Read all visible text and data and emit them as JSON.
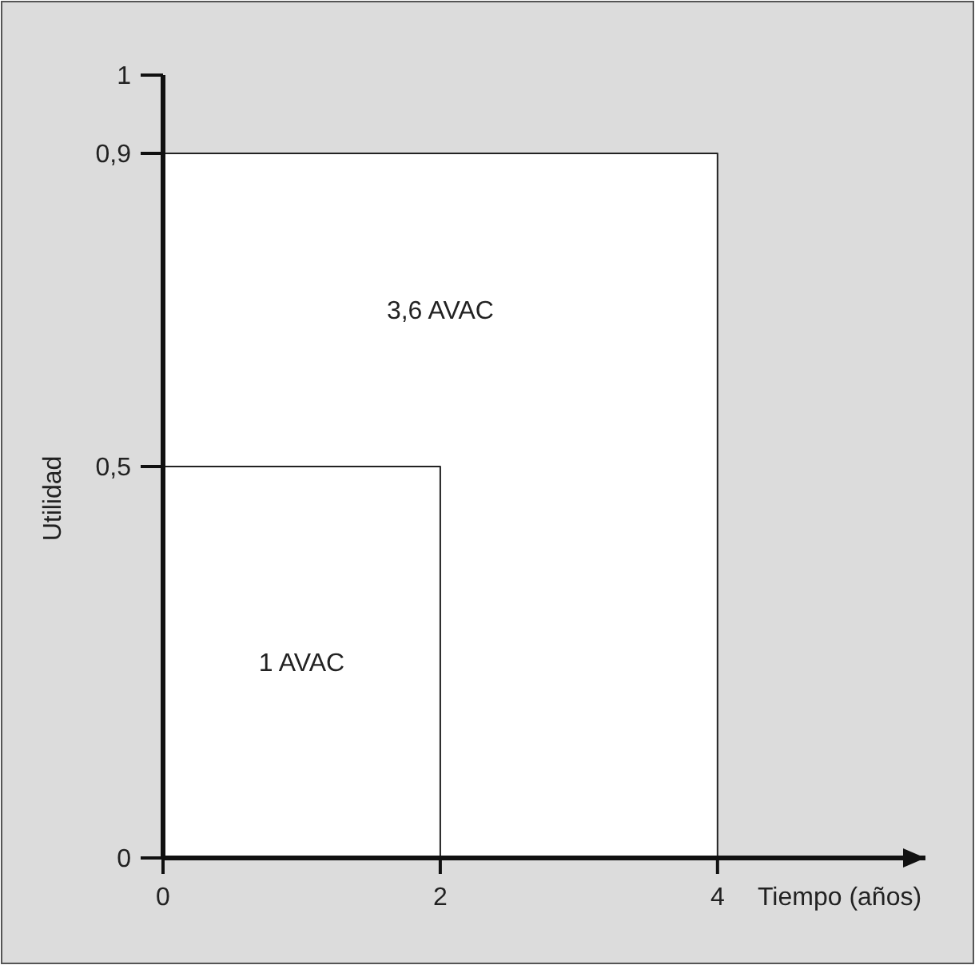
{
  "chart_data": {
    "type": "area",
    "xlabel": "Tiempo (años)",
    "ylabel": "Utilidad",
    "series": [
      {
        "x": [
          0,
          4
        ],
        "values": [
          0.9,
          0.9
        ],
        "color": "#ffffff"
      },
      {
        "type": "line",
        "x": [
          0,
          2,
          2
        ],
        "values": [
          0.5,
          0.5,
          0
        ],
        "color": "#222222"
      }
    ],
    "xlim": [
      0,
      5.5
    ],
    "ylim": [
      0,
      1
    ],
    "xticks": [
      0,
      2,
      4
    ],
    "yticks": [
      0,
      {
        "value": 0.5,
        "label": "0,5"
      },
      {
        "value": 0.9,
        "label": "0,9"
      },
      1
    ],
    "annotations": [
      "3,6 AVAC",
      "1 AVAC"
    ]
  }
}
